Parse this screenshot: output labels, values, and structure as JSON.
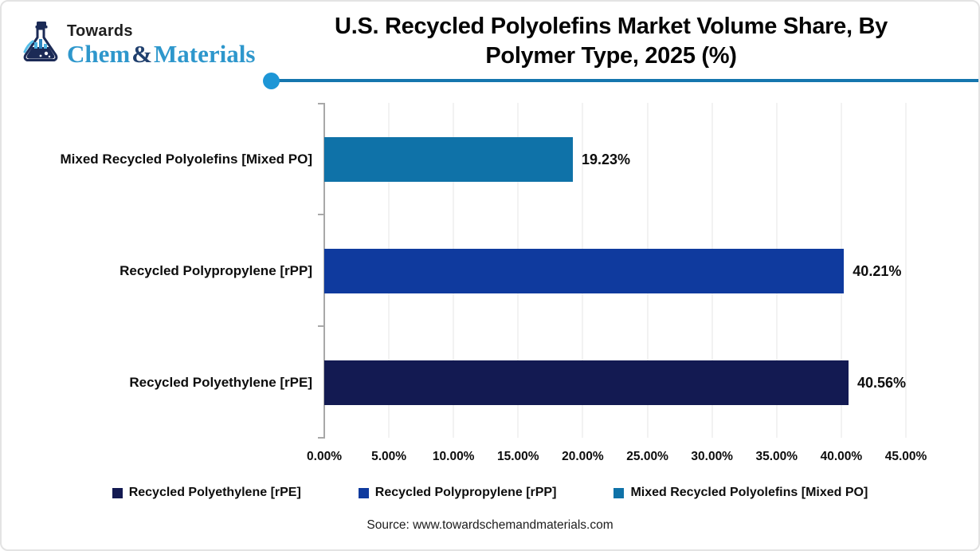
{
  "logo": {
    "towards": "Towards",
    "brand_chem": "Chem",
    "brand_amp": "&",
    "brand_materials": "Materials"
  },
  "title": {
    "line1": "U.S. Recycled Polyolefins Market Volume Share, By",
    "line2": "Polymer Type, 2025 (%)"
  },
  "chart_data": {
    "type": "bar",
    "orientation": "horizontal",
    "title": "U.S. Recycled Polyolefins Market Volume Share, By Polymer Type, 2025 (%)",
    "categories": [
      "Mixed Recycled Polyolefins [Mixed PO]",
      "Recycled Polypropylene [rPP]",
      "Recycled Polyethylene [rPE]"
    ],
    "values": [
      19.23,
      40.21,
      40.56
    ],
    "value_labels": [
      "19.23%",
      "40.21%",
      "40.56%"
    ],
    "bar_colors": [
      "#0f72a8",
      "#0f3a9e",
      "#131a52"
    ],
    "xlabel": "",
    "ylabel": "",
    "xlim": [
      0,
      45
    ],
    "x_tick_step": 5,
    "x_tick_labels": [
      "0.00%",
      "5.00%",
      "10.00%",
      "15.00%",
      "20.00%",
      "25.00%",
      "30.00%",
      "35.00%",
      "40.00%",
      "45.00%"
    ],
    "grid": "faint vertical gridlines at each tick",
    "legend_position": "bottom",
    "legend": [
      {
        "label": "Recycled Polyethylene [rPE]",
        "color": "#131a52"
      },
      {
        "label": "Recycled Polypropylene [rPP]",
        "color": "#0f3a9e"
      },
      {
        "label": "Mixed Recycled Polyolefins [Mixed PO]",
        "color": "#0f72a8"
      }
    ]
  },
  "colors": {
    "divider_line": "#1576ae",
    "divider_dot": "#1d96d6",
    "axis": "#a8a8a8",
    "brand_blue": "#2e97cc",
    "brand_navy": "#20406e"
  },
  "footer": {
    "source": "Source: www.towardschemandmaterials.com"
  }
}
